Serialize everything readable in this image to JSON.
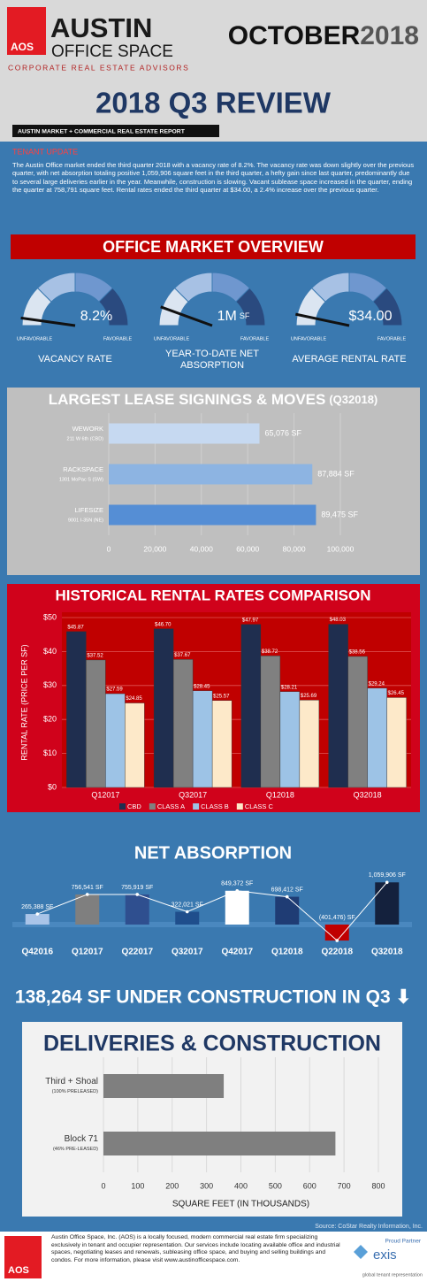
{
  "header": {
    "logo": "AOS",
    "brand": "AUSTIN",
    "brand2": "OFFICE SPACE",
    "tagline": "CORPORATE REAL ESTATE ADVISORS",
    "month": "OCTOBER",
    "year": "2018",
    "title": "2018 Q3 REVIEW",
    "subtitle": "AUSTIN MARKET + COMMERCIAL REAL ESTATE REPORT"
  },
  "update": {
    "heading": "TENANT UPDATE",
    "body": "The Austin Office market ended the third quarter 2018 with a vacancy rate of 8.2%. The vacancy rate was down slightly over the previous quarter, with net absorption totaling positive 1,059,906 square feet in the third quarter, a hefty gain since last quarter, predominantly due to several large deliveries earlier in the year.  Meanwhile, construction is slowing. Vacant sublease space increased in the quarter, ending the quarter at 758,791 square feet. Rental rates ended the third quarter at $34.00, a 2.4% increase over the previous quarter."
  },
  "overview": {
    "title": "OFFICE MARKET OVERVIEW",
    "gauges": [
      {
        "value_label": "8.2%",
        "left": "UNFAVORABLE",
        "right": "FAVORABLE",
        "label_lines": [
          "VACANCY RATE"
        ]
      },
      {
        "value_label": "1M",
        "unit": "SF",
        "left": "UNFAVORABLE",
        "right": "FAVORABLE",
        "label_lines": [
          "YEAR-TO-DATE NET",
          "ABSORPTION"
        ]
      },
      {
        "value_label": "$34.00",
        "left": "UNFAVORABLE",
        "right": "FAVORABLE",
        "label_lines": [
          "AVERAGE RENTAL RATE"
        ]
      }
    ]
  },
  "chart_data": [
    {
      "type": "hbar",
      "title": "LARGEST LEASE SIGNINGS & MOVES",
      "title_suffix": "(Q32018)",
      "categories": [
        "WEWORK",
        "RACKSPACE",
        "LIFESIZE"
      ],
      "category_notes": [
        "211 W 6th (CBD)",
        "1301 MoPac S (SW)",
        "9001 I-35N (NE)"
      ],
      "values": [
        65076,
        87884,
        89475
      ],
      "value_labels": [
        "65,076 SF",
        "87,884 SF",
        "89,475 SF"
      ],
      "colors": [
        "#c6d9f1",
        "#8db4e2",
        "#558ed5"
      ],
      "xlim": [
        0,
        100000
      ],
      "xticks": [
        0,
        {
          "value": 20000,
          "label": "20,000"
        },
        {
          "value": 40000,
          "label": "40,000"
        },
        {
          "value": 60000,
          "label": "60,000"
        },
        {
          "value": 80000,
          "label": "80,000"
        },
        {
          "value": 100000,
          "label": "100,000"
        }
      ],
      "grid": true
    },
    {
      "type": "grouped_bar",
      "title": "HISTORICAL RENTAL RATES COMPARISON",
      "y_label": "RENTAL RATE (PRICE PER SF)",
      "categories": [
        "Q12017",
        "Q32017",
        "Q12018",
        "Q32018"
      ],
      "series": [
        {
          "name": "CBD",
          "color": "#1f2e4f",
          "values": [
            45.87,
            46.7,
            47.97,
            48.03
          ],
          "value_labels": [
            "$45.87",
            "$46.70",
            "$47.97",
            "$48.03"
          ]
        },
        {
          "name": "CLASS A",
          "color": "#808080",
          "values": [
            37.52,
            37.67,
            38.72,
            38.56
          ],
          "value_labels": [
            "$37.52",
            "$37.67",
            "$38.72",
            "$38.56"
          ]
        },
        {
          "name": "CLASS B",
          "color": "#9dc3e6",
          "values": [
            27.59,
            28.45,
            28.21,
            29.24
          ],
          "value_labels": [
            "$27.59",
            "$28.45",
            "$28.21",
            "$29.24"
          ]
        },
        {
          "name": "CLASS C",
          "color": "#fde9c9",
          "values": [
            24.85,
            25.57,
            25.69,
            26.45
          ],
          "value_labels": [
            "$24.85",
            "$25.57",
            "$25.69",
            "$26.45"
          ]
        }
      ],
      "ylim": [
        0,
        50
      ],
      "yticks": [
        {
          "value": 0,
          "label": "$0"
        },
        {
          "value": 10,
          "label": "$10"
        },
        {
          "value": 20,
          "label": "$20"
        },
        {
          "value": 30,
          "label": "$30"
        },
        {
          "value": 40,
          "label": "$40"
        },
        {
          "value": 50,
          "label": "$50"
        }
      ],
      "grid": true
    },
    {
      "type": "bar",
      "title": "NET ABSORPTION",
      "categories": [
        "Q42016",
        "Q12017",
        "Q22017",
        "Q32017",
        "Q42017",
        "Q12018",
        "Q22018",
        "Q32018"
      ],
      "values": [
        265388,
        756541,
        755919,
        322021,
        849372,
        698412,
        -401476,
        1059906
      ],
      "value_labels": [
        "265,388 SF",
        "756,541 SF",
        "755,919 SF",
        "322,021 SF",
        "849,372 SF",
        "698,412 SF",
        "(401,476) SF",
        "1,059,906 SF"
      ],
      "colors": [
        "#a9c4e8",
        "#7f7f7f",
        "#2f4f8f",
        "#1f4e8c",
        "#ffffff",
        "#1f3c74",
        "#c00000",
        "#14213d"
      ]
    },
    {
      "type": "hbar",
      "title": "DELIVERIES & CONSTRUCTION",
      "categories": [
        "Third + Shoal",
        "Block 71"
      ],
      "category_notes": [
        "(100% PRELEASED)",
        "(46% PRE-LEASED)"
      ],
      "values": [
        350,
        675
      ],
      "color": "#7f7f7f",
      "xlim": [
        0,
        800
      ],
      "xticks": [
        0,
        100,
        200,
        300,
        400,
        500,
        600,
        700,
        800
      ],
      "x_label": "SQUARE FEET (IN THOUSANDS)",
      "grid": true
    }
  ],
  "construction": "138,264 SF UNDER CONSTRUCTION IN Q3 ⬇",
  "footer": {
    "source": "Source: CoStar Realty Information, Inc.",
    "logo": "AOS",
    "body": "Austin Office Space, Inc. (AOS) is a locally focused, modern commercial real estate firm specializing exclusively in tenant and occupier representation. Our services include locating available office and industrial spaces, negotiating leases and renewals, subleasing office space, and buying and selling buildings and condos. For more information, please visit www.austinofficespace.com.",
    "partner": "Proud Partner",
    "partner_name": "exis",
    "partner_tag": "global tenant representation"
  }
}
